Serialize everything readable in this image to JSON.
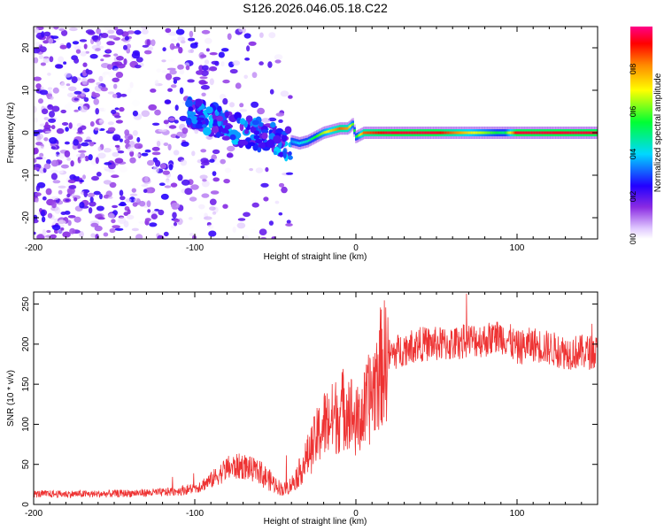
{
  "title": "S126.2026.046.05.18.C22",
  "chart_data": [
    {
      "type": "heatmap",
      "xlabel": "Height of straight line (km)",
      "ylabel": "Frequency (Hz)",
      "xlim": [
        -200,
        150
      ],
      "ylim": [
        -25,
        25
      ],
      "xticks": [
        -200,
        -100,
        0,
        100
      ],
      "xtick_labels": [
        "-200",
        "-100",
        "0",
        "100"
      ],
      "yticks": [
        -20,
        -10,
        0,
        10,
        20
      ],
      "ytick_labels": [
        "-20",
        "-10",
        "0",
        "10",
        "20"
      ],
      "colorbar": {
        "label": "Normalized spectral amplitude",
        "range": [
          0.0,
          1.0
        ],
        "ticks": [
          0.0,
          0.2,
          0.4,
          0.6,
          0.8
        ],
        "tick_labels": [
          "0.0",
          "0.2",
          "0.4",
          "0.6",
          "0.8"
        ]
      },
      "carrier_trace": {
        "x": [
          -40,
          -35,
          -30,
          -25,
          -20,
          -15,
          -10,
          -5,
          -2,
          0,
          5,
          20,
          50,
          92,
          100,
          150
        ],
        "freq": [
          -2.0,
          -2.5,
          -2.0,
          -1.0,
          0.0,
          0.5,
          1.0,
          1.0,
          2.0,
          -1.0,
          0.0,
          0.0,
          0.0,
          0.0,
          0.0,
          0.0
        ],
        "amplitude": [
          0.35,
          0.4,
          0.45,
          0.55,
          0.65,
          0.75,
          0.85,
          0.8,
          0.6,
          0.5,
          0.85,
          0.95,
          0.95,
          0.5,
          0.95,
          0.95
        ]
      },
      "noise_region": {
        "x_range": [
          -200,
          -40
        ],
        "freq_range": [
          -25,
          25
        ],
        "amplitude": [
          0.0,
          0.25
        ]
      },
      "scatter_band": {
        "x_range": [
          -105,
          -40
        ],
        "freq": [
          5,
          -3
        ],
        "amplitude": [
          0.15,
          0.4
        ]
      }
    },
    {
      "type": "line",
      "xlabel": "Height of straight line (km)",
      "ylabel": "SNR (10 * v/v)",
      "xlim": [
        -200,
        150
      ],
      "ylim": [
        0,
        265
      ],
      "xticks": [
        -200,
        -100,
        0,
        100
      ],
      "xtick_labels": [
        "-200",
        "-100",
        "0",
        "100"
      ],
      "yticks": [
        0,
        50,
        100,
        150,
        200,
        250
      ],
      "ytick_labels": [
        "0",
        "50",
        "100",
        "150",
        "200",
        "250"
      ],
      "series": [
        {
          "name": "SNR",
          "color": "#ee3333",
          "x": [
            -200,
            -180,
            -160,
            -140,
            -120,
            -110,
            -100,
            -90,
            -80,
            -70,
            -60,
            -50,
            -45,
            -40,
            -35,
            -30,
            -25,
            -20,
            -15,
            -10,
            -5,
            0,
            5,
            10,
            15,
            20,
            25,
            30,
            40,
            50,
            60,
            70,
            80,
            90,
            95,
            100,
            110,
            120,
            130,
            140,
            150
          ],
          "values": [
            13,
            13,
            13,
            14,
            15,
            17,
            20,
            30,
            45,
            48,
            40,
            25,
            18,
            25,
            40,
            60,
            80,
            100,
            105,
            115,
            125,
            100,
            115,
            140,
            170,
            185,
            190,
            195,
            200,
            200,
            200,
            205,
            205,
            210,
            205,
            195,
            200,
            195,
            190,
            190,
            190
          ]
        }
      ]
    }
  ]
}
